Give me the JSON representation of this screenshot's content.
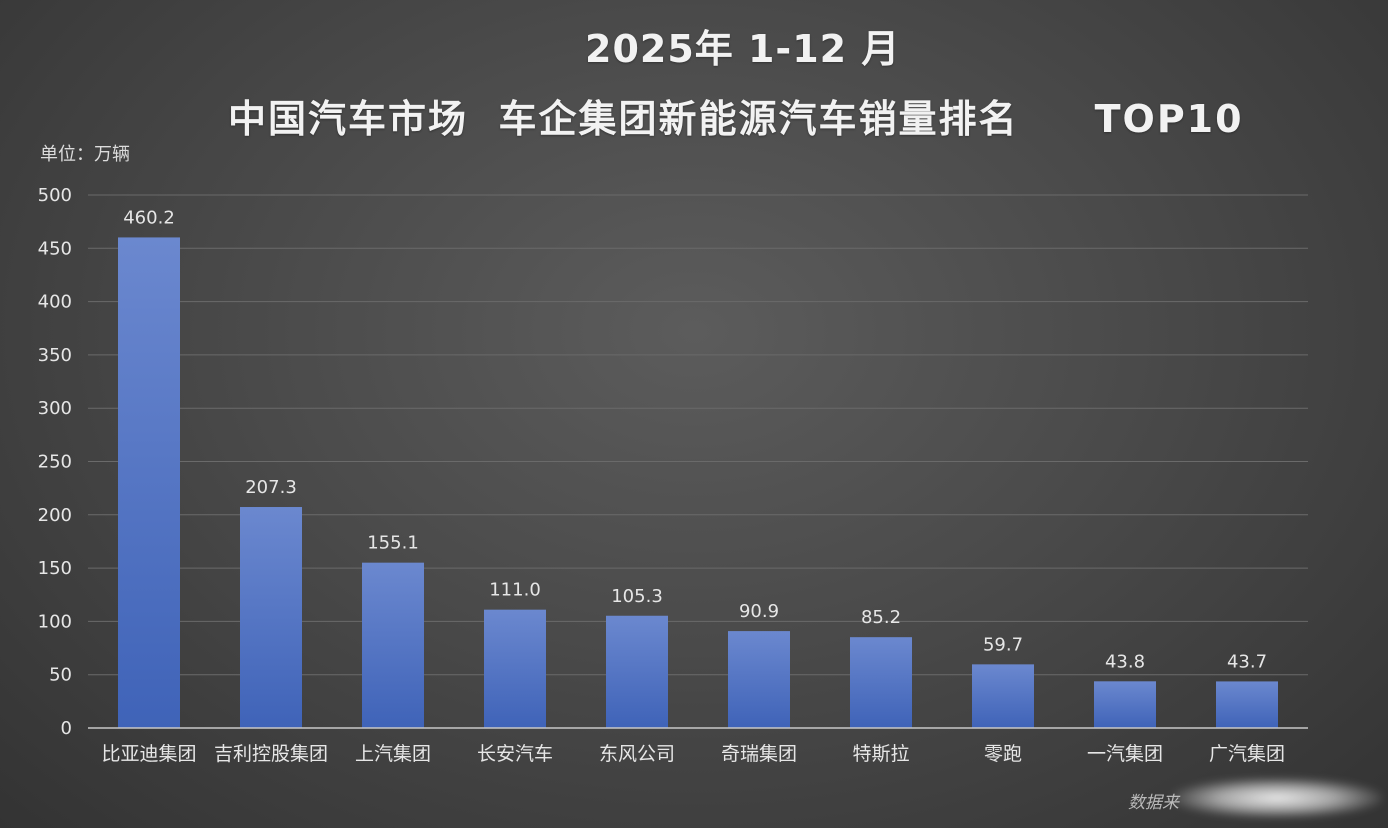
{
  "title_line1": "2025年 1-12 月",
  "title_line2": "中国汽车市场  车企集团新能源汽车销量排名     TOP10",
  "unit_label": "单位：万辆",
  "watermark": "数据来",
  "colors": {
    "bar_top": "#6b88cf",
    "bar_bottom": "#3f63b8",
    "grid": "#6a6a6a",
    "axis": "#c8c8c8",
    "text": "#e6e6e6"
  },
  "chart_data": {
    "type": "bar",
    "categories": [
      "比亚迪集团",
      "吉利控股集团",
      "上汽集团",
      "长安汽车",
      "东风公司",
      "奇瑞集团",
      "特斯拉",
      "零跑",
      "一汽集团",
      "广汽集团"
    ],
    "values": [
      460.2,
      207.3,
      155.1,
      111.0,
      105.3,
      90.9,
      85.2,
      59.7,
      43.8,
      43.7
    ],
    "value_labels": [
      "460.2",
      "207.3",
      "155.1",
      "111.0",
      "105.3",
      "90.9",
      "85.2",
      "59.7",
      "43.8",
      "43.7"
    ],
    "y_ticks": [
      "0",
      "50",
      "100",
      "150",
      "200",
      "250",
      "300",
      "350",
      "400",
      "450",
      "500"
    ],
    "ylim": [
      0,
      500
    ],
    "grid": true,
    "legend": "none"
  }
}
